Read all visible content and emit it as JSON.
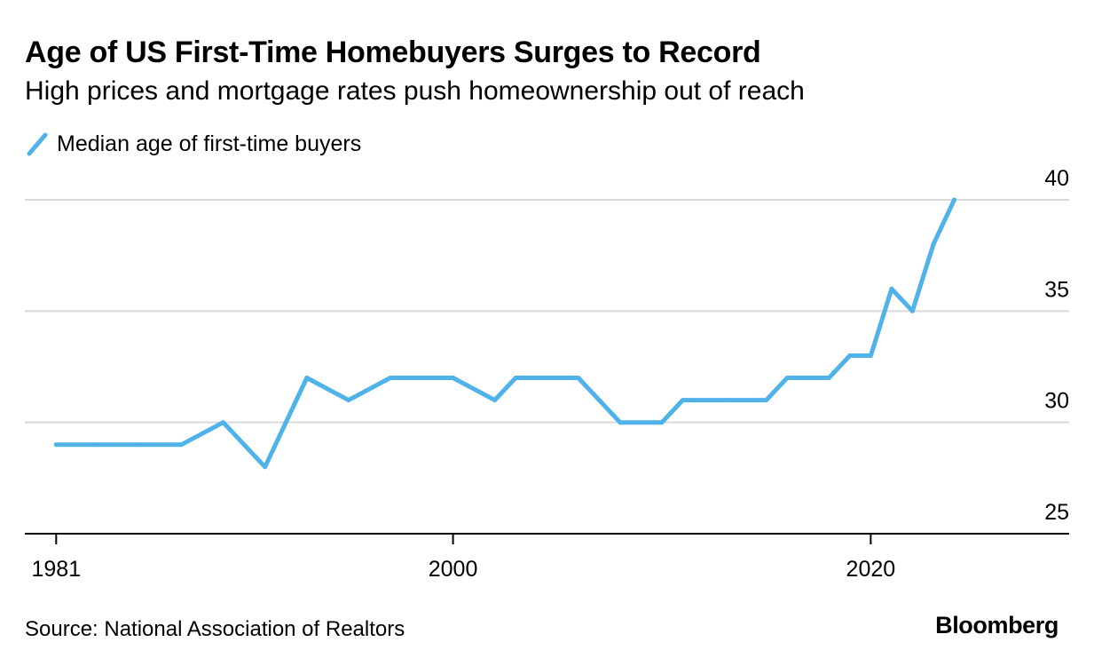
{
  "chart_data": {
    "type": "line",
    "title": "Age of US First-Time Homebuyers Surges to Record",
    "subtitle": "High prices and mortgage rates push homeownership out of reach",
    "xlabel": "",
    "ylabel": "",
    "x_ticks": [
      "1981",
      "2000",
      "2020"
    ],
    "y_ticks": [
      25,
      30,
      35,
      40
    ],
    "xlim": [
      1979.5,
      2029.5
    ],
    "ylim": [
      25,
      41
    ],
    "grid": true,
    "legend_position": "top-left",
    "y_axis_side": "right",
    "source": "Source: National Association of Realtors",
    "brand": "Bloomberg",
    "series": [
      {
        "name": "Median age of first-time buyers",
        "color": "#4FB3EA",
        "x": [
          1981,
          1983,
          1985,
          1987,
          1989,
          1991,
          1993,
          1995,
          1997,
          1999,
          2000,
          2002,
          2003,
          2004,
          2006,
          2008,
          2010,
          2011,
          2013,
          2015,
          2016,
          2017,
          2018,
          2019,
          2020,
          2021,
          2022,
          2023,
          2024
        ],
        "values": [
          29,
          29,
          29,
          29,
          30,
          28,
          32,
          31,
          32,
          32,
          32,
          31,
          32,
          32,
          32,
          30,
          30,
          31,
          31,
          31,
          32,
          32,
          32,
          33,
          33,
          36,
          35,
          38,
          40
        ]
      }
    ]
  }
}
